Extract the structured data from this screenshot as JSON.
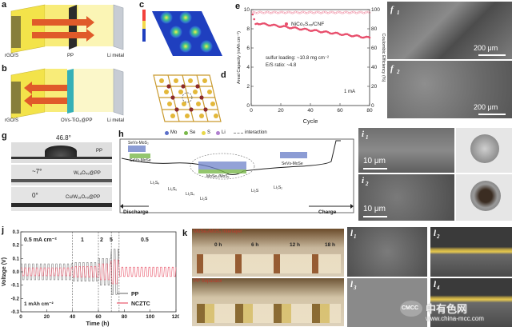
{
  "panel_a": {
    "label": "a",
    "left": "rGO/S",
    "middle": "PP",
    "right": "Li metal"
  },
  "panel_b": {
    "label": "b",
    "left": "rGO/S",
    "middle": "OVs-TiO₂@PP",
    "right": "Li metal"
  },
  "panel_c": {
    "label": "c"
  },
  "panel_d": {
    "label": "d"
  },
  "panel_e": {
    "label": "e",
    "legend": "NiCo₂S₄ₓ/CNF",
    "note1": "sulfur loading: ~10.8 mg cm⁻²",
    "note2": "E/S ratio: ~4.8",
    "rate": "1 mA",
    "xlabel": "Cycle",
    "ylabel": "Areal Capacity (mAh cm⁻²)",
    "y2label": "Coulombic Efficiency (%)",
    "xticks": [
      "0",
      "20",
      "40",
      "60",
      "80"
    ],
    "yticks": [
      "0",
      "2",
      "4",
      "6",
      "8",
      "10"
    ],
    "y2ticks": [
      "0",
      "20",
      "40",
      "60",
      "80",
      "100"
    ]
  },
  "panel_f": {
    "label": "f",
    "sub1": "1",
    "sub2": "2",
    "scale1": "200 μm",
    "scale2": "200 μm"
  },
  "panel_g": {
    "label": "g",
    "angle1": "46.8°",
    "name1": "PP",
    "angle2": "~7°",
    "name2": "W₁₈O₄₉@PP",
    "angle3": "0°",
    "name3": "Cu/W₁₈O₄₉@PP"
  },
  "panel_h": {
    "label": "h",
    "legend": [
      "Mo",
      "Se",
      "S",
      "Li",
      "interaction"
    ],
    "legend_colors": [
      "#5b6fc9",
      "#79b84a",
      "#e9d84a",
      "#b07fcf",
      "#888888"
    ],
    "species": [
      "SeVs-MoS₂",
      "SeVs-MoSe",
      "Li₂S₈",
      "Li₂S₆",
      "Li₂S₄",
      "Li₂S",
      "MoSe₂/MoS₂",
      "Li₂S",
      "Li₂S₂",
      "SeVs-MoSe"
    ],
    "discharge": "Discharge",
    "charge": "Charge"
  },
  "panel_i": {
    "label": "i",
    "sub1": "1",
    "sub2": "2",
    "scale1": "10 μm",
    "scale2": "10 μm"
  },
  "panel_j": {
    "label": "j",
    "rates": [
      "0.5 mA cm⁻²",
      "1",
      "2",
      "5",
      "0.5"
    ],
    "capacity": "1 mAh cm⁻²",
    "legend": [
      "PP",
      "NCZTC"
    ],
    "xlabel": "Time (h)",
    "ylabel": "Voltage (V)",
    "xticks": [
      "0",
      "20",
      "40",
      "60",
      "80",
      "100",
      "120"
    ],
    "yticks": [
      "-0.3",
      "-0.2",
      "-0.1",
      "0.0",
      "0.1",
      "0.2",
      "0.3"
    ]
  },
  "panel_k": {
    "label": "k",
    "row1": "MoSe₂/MoS₂ Interlayer",
    "row2": "PP Separator",
    "times": [
      "0 h",
      "6 h",
      "12 h",
      "18 h"
    ]
  },
  "panel_l": {
    "label": "l",
    "sub1": "1",
    "sub2": "2",
    "sub3": "3",
    "sub4": "4"
  },
  "watermark": {
    "cn": "中有色网",
    "url": "www.china-mcc.com",
    "logo": "CMCC"
  }
}
